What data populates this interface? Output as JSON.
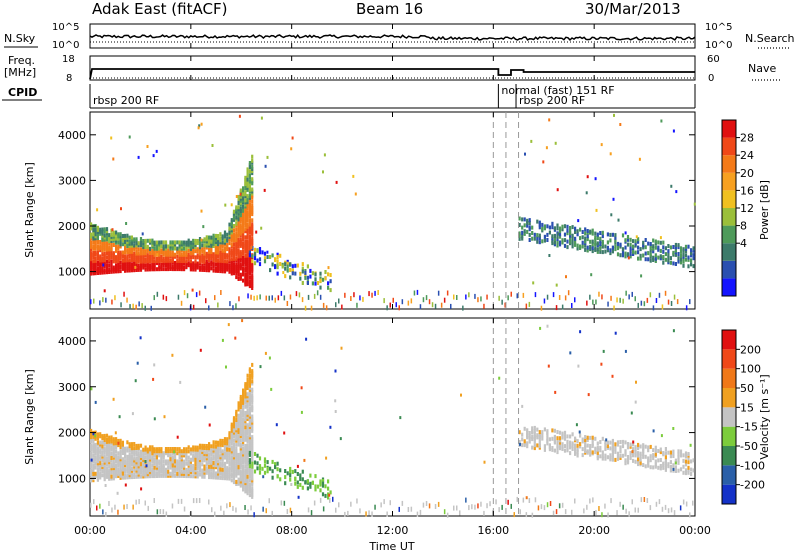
{
  "header": {
    "station": "Adak East (fitACF)",
    "beam": "Beam 16",
    "date": "30/Mar/2013"
  },
  "top_panels": {
    "nsky_label": "N.Sky",
    "nsearch_label": "N.Search",
    "nsky_ticks": [
      "10^5",
      "10^0"
    ],
    "nsearch_ticks": [
      "10^5",
      "10^0"
    ],
    "freq_label_1": "Freq.",
    "freq_label_2": "[MHz]",
    "freq_ticks": [
      "18",
      "8"
    ],
    "nave_label": "Nave",
    "nave_ticks": [
      "60",
      "0"
    ],
    "cpid_label": "CPID",
    "cpid_segments": [
      {
        "label": "rbsp 200 RF",
        "start_hour": 0.0
      },
      {
        "label": "normal (fast) 151 RF",
        "start_hour": 16.2
      },
      {
        "label": "rbsp 200 RF",
        "start_hour": 16.9
      }
    ]
  },
  "chart_data": [
    {
      "type": "heatmap",
      "name": "power",
      "ylabel": "Slant Range [km]",
      "ylim": [
        180,
        4500
      ],
      "yticks": [
        1000,
        2000,
        3000,
        4000
      ],
      "xlim": [
        0,
        24
      ],
      "colorbar": {
        "label": "Power [dB]",
        "ticks": [
          28,
          24,
          20,
          16,
          12,
          8,
          4
        ],
        "range": [
          0,
          30
        ],
        "colors": [
          "#1414ff",
          "#2a4fb0",
          "#3c7a6a",
          "#4e9a5a",
          "#9bbf3a",
          "#f0c020",
          "#f7a020",
          "#f47a18",
          "#f04818",
          "#e01010"
        ]
      },
      "features": [
        {
          "band": "main echo",
          "start_hour": 0.0,
          "end_hour": 6.3,
          "range_km": [
            1000,
            2000
          ],
          "power_db": 24
        },
        {
          "band": "afternoon echo",
          "start_hour": 17.0,
          "end_hour": 24.0,
          "range_km": [
            1000,
            2100
          ],
          "power_db": 10
        }
      ]
    },
    {
      "type": "heatmap",
      "name": "velocity",
      "ylabel": "Slant Range [km]",
      "ylim": [
        180,
        4500
      ],
      "yticks": [
        1000,
        2000,
        3000,
        4000
      ],
      "xlim": [
        0,
        24
      ],
      "colorbar": {
        "label": "Velocity [m s⁻¹]",
        "ticks": [
          "200",
          "100",
          "50",
          "15",
          "-15",
          "-50",
          "-100",
          "-200"
        ],
        "colors": [
          "#1432c8",
          "#2a5fa8",
          "#3a8a52",
          "#7ccc3c",
          "#c4c4c4",
          "#f0a020",
          "#f07818",
          "#f04818",
          "#e01010"
        ]
      }
    }
  ],
  "x_axis": {
    "label": "Time UT",
    "ticks": [
      "00:00",
      "04:00",
      "08:00",
      "12:00",
      "16:00",
      "20:00",
      "00:00"
    ],
    "tick_hours": [
      0,
      4,
      8,
      12,
      16,
      20,
      24
    ]
  }
}
